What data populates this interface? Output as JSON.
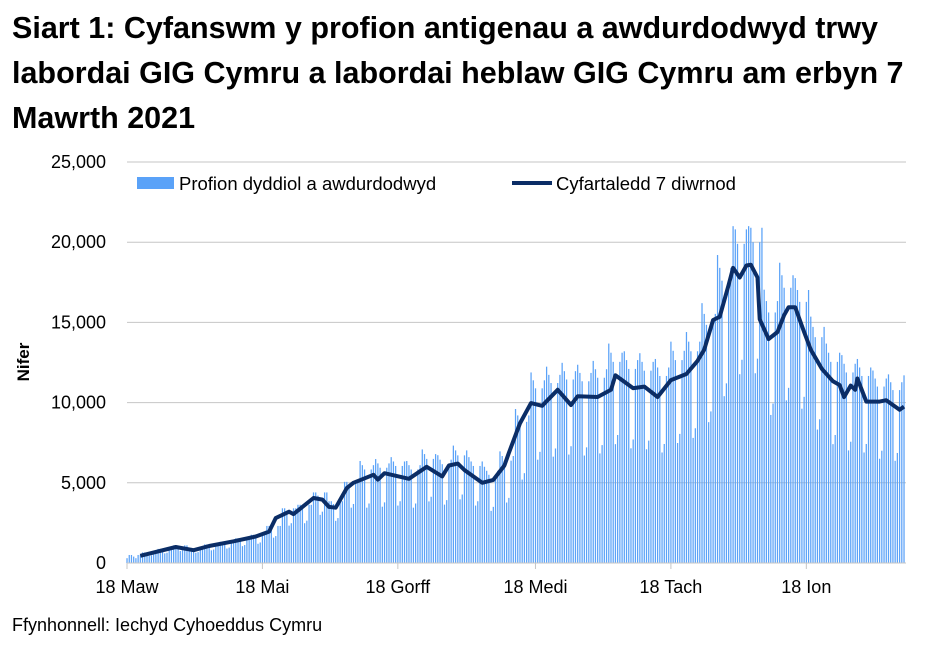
{
  "chart_data": {
    "type": "bar+line",
    "title": "Siart 1: Cyfanswm y profion antigenau a awdurdodwyd trwy labordai GIG Cymru a labordai heblaw GIG Cymru am erbyn 7 Mawrth 2021",
    "ylabel": "Nifer",
    "xlabel": "",
    "ylim": [
      0,
      25000
    ],
    "yticks": [
      "0",
      "5,000",
      "10,000",
      "15,000",
      "20,000",
      "25,000"
    ],
    "ytick_values": [
      0,
      5000,
      10000,
      15000,
      20000,
      25000
    ],
    "xticks": [
      {
        "date": "2020-03-18",
        "label": "18 Maw"
      },
      {
        "date": "2020-05-18",
        "label": "18 Mai"
      },
      {
        "date": "2020-07-18",
        "label": "18 Gorff"
      },
      {
        "date": "2020-09-18",
        "label": "18 Medi"
      },
      {
        "date": "2020-11-18",
        "label": "18 Tach"
      },
      {
        "date": "2021-01-18",
        "label": "18 Ion"
      }
    ],
    "grid": true,
    "legend_position": "top",
    "colors": {
      "bars": "#5aa2f8",
      "line": "#0b2d66",
      "grid": "#c6c6c6"
    },
    "series": [
      {
        "name": "Profion dyddiol a awdurdodwyd",
        "type": "bar",
        "start_date": "2020-03-18",
        "values": [
          300,
          500,
          500,
          400,
          300,
          500,
          500,
          660,
          660,
          630,
          450,
          480,
          660,
          660,
          880,
          880,
          840,
          600,
          640,
          880,
          880,
          1100,
          1100,
          1050,
          750,
          800,
          1100,
          1100,
          940,
          940,
          890,
          640,
          680,
          940,
          940,
          1160,
          1160,
          1100,
          790,
          840,
          1160,
          1160,
          1320,
          1320,
          1260,
          900,
          960,
          1320,
          1320,
          1540,
          1540,
          1470,
          1050,
          1120,
          1540,
          1540,
          1760,
          1760,
          1680,
          1200,
          1280,
          1760,
          1760,
          2310,
          2310,
          2200,
          1580,
          1680,
          2310,
          2310,
          3410,
          3410,
          3260,
          2330,
          2480,
          3410,
          3410,
          3630,
          3630,
          3470,
          2480,
          2640,
          3630,
          3630,
          4400,
          4400,
          4200,
          3000,
          3200,
          4400,
          4400,
          3850,
          3850,
          3680,
          2630,
          2800,
          3850,
          3850,
          5060,
          5060,
          4830,
          3450,
          3680,
          5060,
          5060,
          6360,
          6100,
          5830,
          3450,
          3710,
          5830,
          6100,
          6480,
          6210,
          5940,
          3510,
          3780,
          5940,
          6210,
          6600,
          6330,
          6050,
          3580,
          3850,
          6050,
          6330,
          6360,
          6100,
          5830,
          3450,
          3710,
          5830,
          6100,
          7080,
          6790,
          6490,
          3840,
          4130,
          6490,
          6790,
          6720,
          6440,
          6160,
          3640,
          3920,
          6160,
          6440,
          7320,
          7020,
          6710,
          3970,
          4270,
          6710,
          7020,
          6600,
          6330,
          6050,
          3580,
          3850,
          6050,
          6330,
          6000,
          5750,
          5500,
          3250,
          3500,
          5500,
          5750,
          6960,
          6670,
          6380,
          3770,
          4060,
          6380,
          6670,
          9600,
          9200,
          8800,
          5200,
          5600,
          8800,
          9200,
          11880,
          11390,
          10890,
          6440,
          6930,
          10890,
          11390,
          12240,
          11730,
          11220,
          6630,
          7140,
          11220,
          11730,
          12480,
          11960,
          11440,
          6760,
          7280,
          11440,
          11960,
          12360,
          11850,
          11330,
          6700,
          7210,
          11330,
          11850,
          12600,
          12080,
          11550,
          6830,
          7350,
          11550,
          12080,
          13680,
          13110,
          12540,
          7410,
          7980,
          12540,
          13110,
          13200,
          12650,
          12100,
          7150,
          7700,
          12100,
          12650,
          13080,
          12540,
          11990,
          7090,
          7630,
          11990,
          12540,
          12720,
          12190,
          11660,
          6890,
          7420,
          11660,
          12190,
          13800,
          13230,
          12650,
          7480,
          8050,
          12650,
          13230,
          14400,
          13800,
          13200,
          7800,
          8400,
          13200,
          13800,
          16200,
          15530,
          14850,
          8780,
          9450,
          14850,
          15530,
          19200,
          18400,
          17600,
          10400,
          11200,
          17600,
          18400,
          21000,
          20800,
          19900,
          11770,
          12670,
          19900,
          20800,
          21000,
          20900,
          20000,
          11830,
          12740,
          20000,
          20900,
          17040,
          16330,
          15620,
          9230,
          9940,
          15620,
          16330,
          18720,
          17940,
          17160,
          10140,
          10920,
          17160,
          17940,
          17760,
          17020,
          16280,
          9620,
          10360,
          16280,
          17020,
          15360,
          14720,
          14080,
          8320,
          8960,
          14080,
          14720,
          13680,
          13110,
          12540,
          7410,
          7980,
          12540,
          13110,
          12960,
          12420,
          11880,
          7020,
          7560,
          11880,
          12420,
          12720,
          12190,
          11660,
          6890,
          7420,
          11660,
          12190,
          12000,
          11500,
          11000,
          6500,
          7000,
          11000,
          11500,
          11760,
          11270,
          10780,
          6370,
          6860,
          10780,
          11270,
          11700
        ]
      },
      {
        "name": "Cyfartaledd 7 diwrnod",
        "type": "line",
        "points": [
          [
            "2020-03-24",
            450
          ],
          [
            "2020-04-09",
            1000
          ],
          [
            "2020-04-17",
            800
          ],
          [
            "2020-04-24",
            1060
          ],
          [
            "2020-05-05",
            1350
          ],
          [
            "2020-05-15",
            1650
          ],
          [
            "2020-05-21",
            1960
          ],
          [
            "2020-05-24",
            2800
          ],
          [
            "2020-05-30",
            3200
          ],
          [
            "2020-06-01",
            3050
          ],
          [
            "2020-06-10",
            4050
          ],
          [
            "2020-06-14",
            3950
          ],
          [
            "2020-06-17",
            3500
          ],
          [
            "2020-06-20",
            3450
          ],
          [
            "2020-06-25",
            4670
          ],
          [
            "2020-06-28",
            5000
          ],
          [
            "2020-07-07",
            5500
          ],
          [
            "2020-07-09",
            5200
          ],
          [
            "2020-07-12",
            5600
          ],
          [
            "2020-07-23",
            5250
          ],
          [
            "2020-07-31",
            6000
          ],
          [
            "2020-08-07",
            5400
          ],
          [
            "2020-08-10",
            6080
          ],
          [
            "2020-08-14",
            6200
          ],
          [
            "2020-08-17",
            5800
          ],
          [
            "2020-08-25",
            5000
          ],
          [
            "2020-08-30",
            5180
          ],
          [
            "2020-09-04",
            6080
          ],
          [
            "2020-09-06",
            6850
          ],
          [
            "2020-09-11",
            8700
          ],
          [
            "2020-09-16",
            9970
          ],
          [
            "2020-09-21",
            9800
          ],
          [
            "2020-09-28",
            10800
          ],
          [
            "2020-10-04",
            9850
          ],
          [
            "2020-10-07",
            10400
          ],
          [
            "2020-10-16",
            10350
          ],
          [
            "2020-10-22",
            10800
          ],
          [
            "2020-10-24",
            11700
          ],
          [
            "2020-11-01",
            10900
          ],
          [
            "2020-11-06",
            11000
          ],
          [
            "2020-11-12",
            10350
          ],
          [
            "2020-11-18",
            11400
          ],
          [
            "2020-11-25",
            11780
          ],
          [
            "2020-11-30",
            12600
          ],
          [
            "2020-12-03",
            13300
          ],
          [
            "2020-12-07",
            15150
          ],
          [
            "2020-12-10",
            15350
          ],
          [
            "2020-12-14",
            17330
          ],
          [
            "2020-12-16",
            18400
          ],
          [
            "2020-12-19",
            17800
          ],
          [
            "2020-12-22",
            18550
          ],
          [
            "2020-12-24",
            18600
          ],
          [
            "2020-12-27",
            17800
          ],
          [
            "2020-12-28",
            15200
          ],
          [
            "2021-01-01",
            13960
          ],
          [
            "2021-01-05",
            14400
          ],
          [
            "2021-01-08",
            15450
          ],
          [
            "2021-01-10",
            15950
          ],
          [
            "2021-01-13",
            15950
          ],
          [
            "2021-01-17",
            14400
          ],
          [
            "2021-01-20",
            13300
          ],
          [
            "2021-01-25",
            12100
          ],
          [
            "2021-01-30",
            11330
          ],
          [
            "2021-02-02",
            11100
          ],
          [
            "2021-02-04",
            10350
          ],
          [
            "2021-02-07",
            11060
          ],
          [
            "2021-02-09",
            10800
          ],
          [
            "2021-02-10",
            11500
          ],
          [
            "2021-02-14",
            10060
          ],
          [
            "2021-02-20",
            10060
          ],
          [
            "2021-02-23",
            10150
          ],
          [
            "2021-02-26",
            9850
          ],
          [
            "2021-03-01",
            9550
          ],
          [
            "2021-03-03",
            9750
          ]
        ]
      }
    ],
    "source": "Ffynhonnell: Iechyd Cyhoeddus Cymru"
  }
}
